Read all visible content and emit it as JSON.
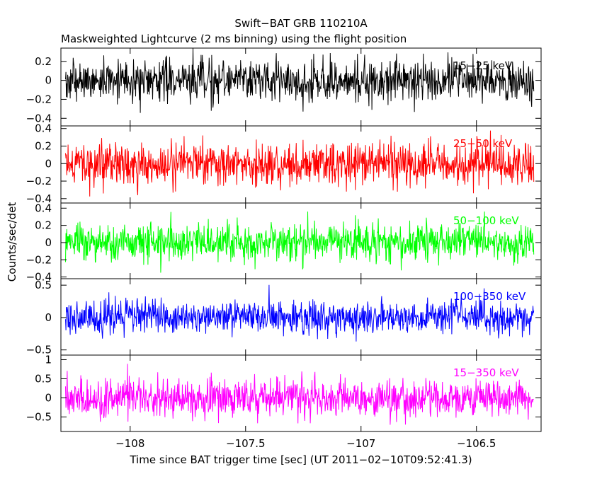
{
  "chart_data": {
    "type": "line",
    "title": "Swift−BAT GRB 110210A",
    "subtitle": "Maskweighted Lightcurve (2 ms binning) using the flight position",
    "xlabel": "Time since BAT trigger time [sec] (UT 2011−02−10T09:52:41.3)",
    "ylabel": "Counts/sec/det",
    "xlim": [
      -108.3,
      -106.22
    ],
    "x_ticks": [
      -108,
      -107.5,
      -107,
      -106.5
    ],
    "x_tick_labels": [
      "−108",
      "−107.5",
      "−107",
      "−106.5"
    ],
    "series_x_range": [
      -108.28,
      -106.25
    ],
    "bin_width": 0.002,
    "panels": [
      {
        "name": "15−25 keV",
        "color": "#000000",
        "ylim": [
          -0.48,
          0.34
        ],
        "y_ticks": [
          -0.4,
          -0.2,
          0,
          0.2
        ],
        "y_tick_labels": [
          "−0.4",
          "−0.2",
          "0",
          "0.2"
        ],
        "noise_sigma": 0.11
      },
      {
        "name": "25−50 keV",
        "color": "#ff0000",
        "ylim": [
          -0.45,
          0.43
        ],
        "y_ticks": [
          -0.4,
          -0.2,
          0,
          0.2,
          0.4
        ],
        "y_tick_labels": [
          "−0.4",
          "−0.2",
          "0",
          "0.2",
          "0.4"
        ],
        "noise_sigma": 0.12
      },
      {
        "name": "50−100 keV",
        "color": "#00ff00",
        "ylim": [
          -0.42,
          0.46
        ],
        "y_ticks": [
          -0.4,
          -0.2,
          0,
          0.2,
          0.4
        ],
        "y_tick_labels": [
          "−0.4",
          "−0.2",
          "0",
          "0.2",
          "0.4"
        ],
        "noise_sigma": 0.11
      },
      {
        "name": "100−350 keV",
        "color": "#0000ff",
        "ylim": [
          -0.58,
          0.6
        ],
        "y_ticks": [
          -0.5,
          0,
          0.5
        ],
        "y_tick_labels": [
          "−0.5",
          "0",
          "0.5"
        ],
        "noise_sigma": 0.13
      },
      {
        "name": "15−350 keV",
        "color": "#ff00ff",
        "ylim": [
          -0.88,
          1.12
        ],
        "y_ticks": [
          -0.5,
          0,
          0.5,
          1
        ],
        "y_tick_labels": [
          "−0.5",
          "0",
          "0.5",
          "1"
        ],
        "noise_sigma": 0.25
      }
    ]
  }
}
